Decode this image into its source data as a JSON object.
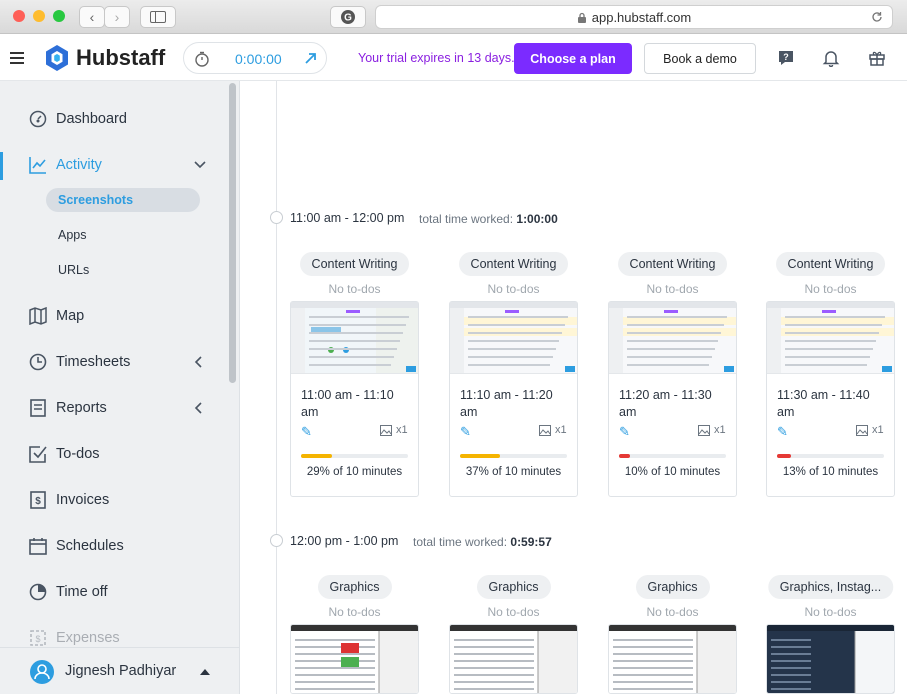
{
  "browser": {
    "url": "app.hubstaff.com",
    "colors": {
      "close": "#fe5f57",
      "minimize": "#febc2e",
      "zoom": "#28c840"
    }
  },
  "header": {
    "brand": "Hubstaff",
    "timer": "0:00:00",
    "trial_text": "Your trial expires in 13 days.",
    "choose_plan": "Choose a plan",
    "book_demo": "Book a demo",
    "accent": "#7b2bff"
  },
  "sidebar": {
    "items": [
      {
        "label": "Dashboard",
        "icon": "dashboard-gauge-icon"
      },
      {
        "label": "Activity",
        "icon": "activity-chart-icon"
      },
      {
        "label": "Map",
        "icon": "map-icon"
      },
      {
        "label": "Timesheets",
        "icon": "clock-icon"
      },
      {
        "label": "Reports",
        "icon": "report-icon"
      },
      {
        "label": "To-dos",
        "icon": "checkbox-icon"
      },
      {
        "label": "Invoices",
        "icon": "invoice-dollar-icon"
      },
      {
        "label": "Schedules",
        "icon": "calendar-icon"
      },
      {
        "label": "Time off",
        "icon": "pie-icon"
      },
      {
        "label": "Expenses",
        "icon": "expenses-icon"
      }
    ],
    "activity_sub": [
      "Screenshots",
      "Apps",
      "URLs"
    ],
    "user_name": "Jignesh Padhiyar",
    "active_color": "#2d9de0"
  },
  "slots": [
    {
      "time": "11:00 am - 12:00 pm",
      "total_label": "total time worked:",
      "total_value": "1:00:00",
      "cards": [
        {
          "project": "Content Writing",
          "todo": "No to-dos",
          "range": "11:00 am - 11:10 am",
          "count": "x1",
          "percent_text": "29% of 10 minutes",
          "activity": 0.29,
          "bar_color": "#f5b400"
        },
        {
          "project": "Content Writing",
          "todo": "No to-dos",
          "range": "11:10 am - 11:20 am",
          "count": "x1",
          "percent_text": "37% of 10 minutes",
          "activity": 0.37,
          "bar_color": "#f5b400"
        },
        {
          "project": "Content Writing",
          "todo": "No to-dos",
          "range": "11:20 am - 11:30 am",
          "count": "x1",
          "percent_text": "10% of 10 minutes",
          "activity": 0.1,
          "bar_color": "#e53935"
        },
        {
          "project": "Content Writing",
          "todo": "No to-dos",
          "range": "11:30 am - 11:40 am",
          "count": "x1",
          "percent_text": "13% of 10 minutes",
          "activity": 0.13,
          "bar_color": "#e53935"
        }
      ]
    },
    {
      "time": "12:00 pm - 1:00 pm",
      "total_label": "total time worked:",
      "total_value": "0:59:57",
      "cards": [
        {
          "project": "Graphics",
          "todo": "No to-dos"
        },
        {
          "project": "Graphics",
          "todo": "No to-dos"
        },
        {
          "project": "Graphics",
          "todo": "No to-dos"
        },
        {
          "project": "Graphics, Instag...",
          "todo": "No to-dos"
        }
      ]
    }
  ]
}
